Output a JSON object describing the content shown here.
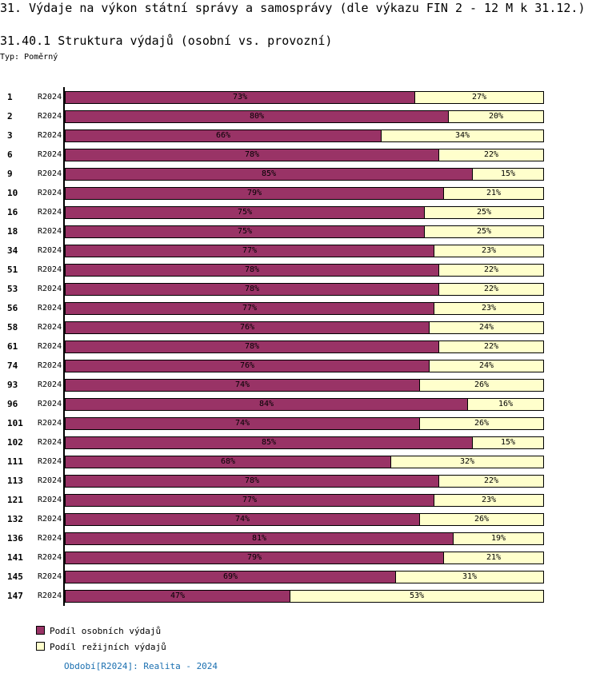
{
  "title": "31. Výdaje na výkon státní správy a samosprávy (dle výkazu FIN 2 - 12 M k 31.12.)",
  "subtitle": "31.40.1 Struktura výdajů (osobní vs. provozní)",
  "typ": "Typ: Poměrný",
  "footer": "Období[R2024]: Realita - 2024",
  "chart_data": {
    "type": "bar",
    "orientation": "horizontal",
    "stacked": "percent",
    "title": "31.40.1 Struktura výdajů (osobní vs. provozní)",
    "period_label": "R2024",
    "categories": [
      "1",
      "2",
      "3",
      "6",
      "9",
      "10",
      "16",
      "18",
      "34",
      "51",
      "53",
      "56",
      "58",
      "61",
      "74",
      "93",
      "96",
      "101",
      "102",
      "111",
      "113",
      "121",
      "132",
      "136",
      "141",
      "145",
      "147"
    ],
    "series": [
      {
        "name": "Podíl osobních výdajů",
        "color": "#993366",
        "values": [
          73,
          80,
          66,
          78,
          85,
          79,
          75,
          75,
          77,
          78,
          78,
          77,
          76,
          78,
          76,
          74,
          84,
          74,
          85,
          68,
          78,
          77,
          74,
          81,
          79,
          69,
          47
        ]
      },
      {
        "name": "Podíl režijních výdajů",
        "color": "#ffffcc",
        "values": [
          27,
          20,
          34,
          22,
          15,
          21,
          25,
          25,
          23,
          22,
          22,
          23,
          24,
          22,
          24,
          26,
          16,
          26,
          15,
          32,
          22,
          23,
          26,
          19,
          21,
          31,
          53
        ]
      }
    ],
    "xlim": [
      0,
      100
    ],
    "legend": "bottom-left"
  }
}
